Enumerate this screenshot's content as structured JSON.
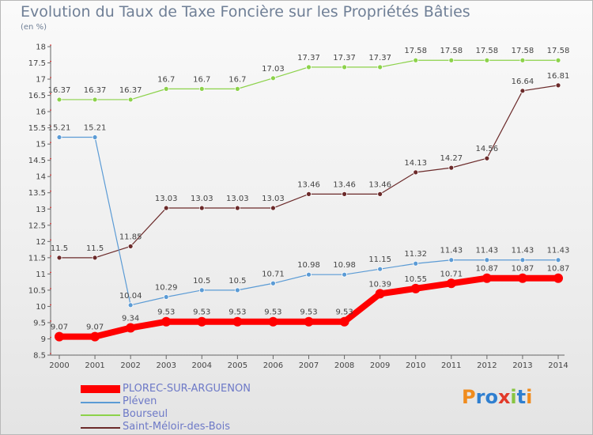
{
  "title": "Evolution du Taux de Taxe Foncière sur les Propriétés Bâties",
  "subtitle": "(en %)",
  "chart_data": {
    "type": "line",
    "title": "Evolution du Taux de Taxe Foncière sur les Propriétés Bâties",
    "ylabel": "(en %)",
    "xlabel": "",
    "x": [
      2000,
      2001,
      2002,
      2003,
      2004,
      2005,
      2006,
      2007,
      2008,
      2009,
      2010,
      2011,
      2012,
      2013,
      2014
    ],
    "ylim": [
      8.5,
      18
    ],
    "yticks": [
      8.5,
      9,
      9.5,
      10,
      10.5,
      11,
      11.5,
      12,
      12.5,
      13,
      13.5,
      14,
      14.5,
      15,
      15.5,
      16,
      16.5,
      17,
      17.5,
      18
    ],
    "grid": false,
    "series": [
      {
        "name": "PLOREC-SUR-ARGUENON",
        "color": "#ff0000",
        "values": [
          9.07,
          9.07,
          9.34,
          9.53,
          9.53,
          9.53,
          9.53,
          9.53,
          9.53,
          10.39,
          10.55,
          10.71,
          10.87,
          10.87,
          10.87
        ]
      },
      {
        "name": "Pléven",
        "color": "#5b9bd5",
        "values": [
          15.21,
          15.21,
          10.04,
          10.29,
          10.5,
          10.5,
          10.71,
          10.98,
          10.98,
          11.15,
          11.32,
          11.43,
          11.43,
          11.43,
          11.43
        ]
      },
      {
        "name": "Bourseul",
        "color": "#8cd24a",
        "values": [
          16.37,
          16.37,
          16.37,
          16.7,
          16.7,
          16.7,
          17.03,
          17.37,
          17.37,
          17.37,
          17.58,
          17.58,
          17.58,
          17.58,
          17.58
        ]
      },
      {
        "name": "Saint-Méloir-des-Bois",
        "color": "#6b2a2a",
        "values": [
          11.5,
          11.5,
          11.85,
          13.03,
          13.03,
          13.03,
          13.03,
          13.46,
          13.46,
          13.46,
          14.13,
          14.27,
          14.56,
          16.64,
          16.81
        ]
      }
    ],
    "legend_position": "bottom-left"
  },
  "legend": {
    "items": [
      {
        "label": "PLOREC-SUR-ARGUENON",
        "color": "#ff0000"
      },
      {
        "label": "Pléven",
        "color": "#5b9bd5"
      },
      {
        "label": "Bourseul",
        "color": "#8cd24a"
      },
      {
        "label": "Saint-Méloir-des-Bois",
        "color": "#6b2a2a"
      }
    ]
  },
  "logo": {
    "text": "Proxiti"
  }
}
